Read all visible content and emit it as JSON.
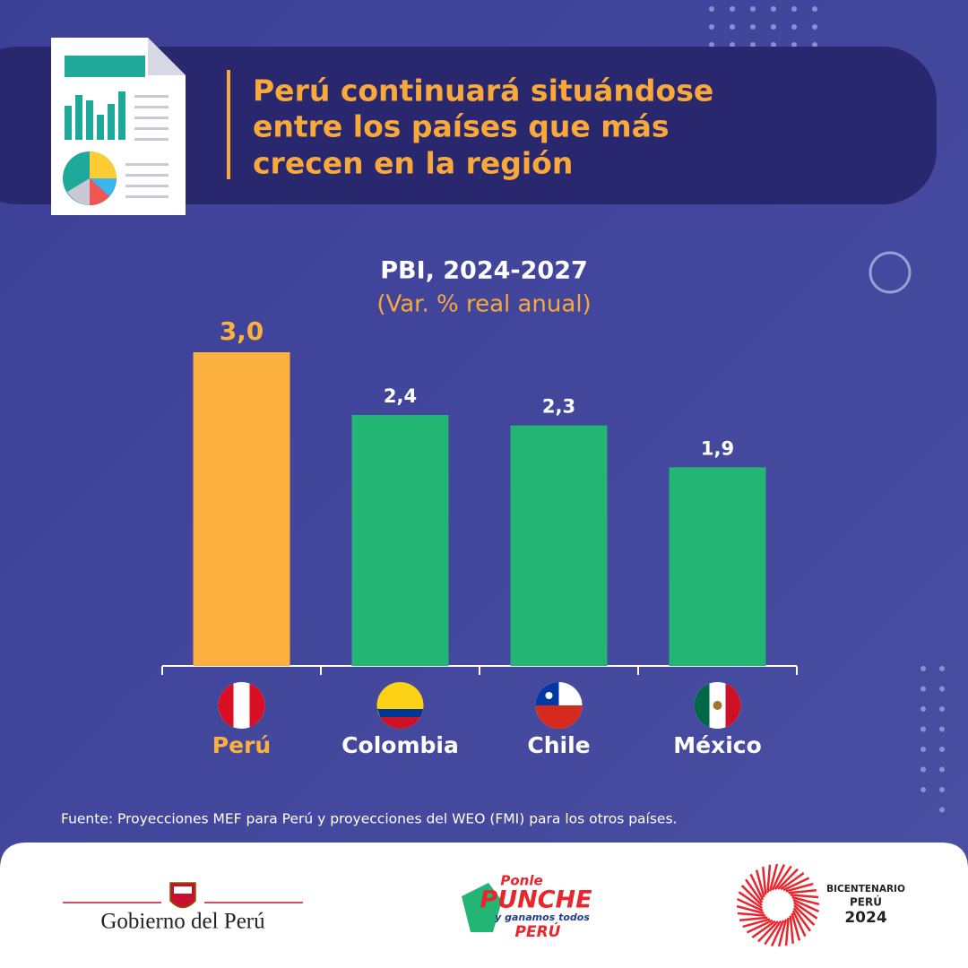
{
  "header": {
    "headline": [
      "Perú continuará situándose",
      "entre los países que más",
      "crecen en la región"
    ]
  },
  "chart_data": {
    "type": "bar",
    "title": "PBI, 2024-2027",
    "subtitle": "(Var. % real anual)",
    "categories": [
      "Perú",
      "Colombia",
      "Chile",
      "México"
    ],
    "values": [
      3.0,
      2.4,
      2.3,
      1.9
    ],
    "value_labels": [
      "3,0",
      "2,4",
      "2,3",
      "1,9"
    ],
    "colors": [
      "#fbb040",
      "#23b573",
      "#23b573",
      "#23b573"
    ],
    "label_colors": [
      "#fbb040",
      "#ffffff",
      "#ffffff",
      "#ffffff"
    ]
  },
  "source": "Fuente: Proyecciones MEF para Perú y proyecciones del WEO (FMI) para los otros países.",
  "footer": {
    "gobierno": "Gobierno del Perú",
    "punche": [
      "Ponle",
      "PUNCHE",
      "y ganamos todos",
      "PERÚ"
    ],
    "bicentenario": [
      "BICENTENARIO",
      "PERÚ",
      "2024"
    ]
  }
}
